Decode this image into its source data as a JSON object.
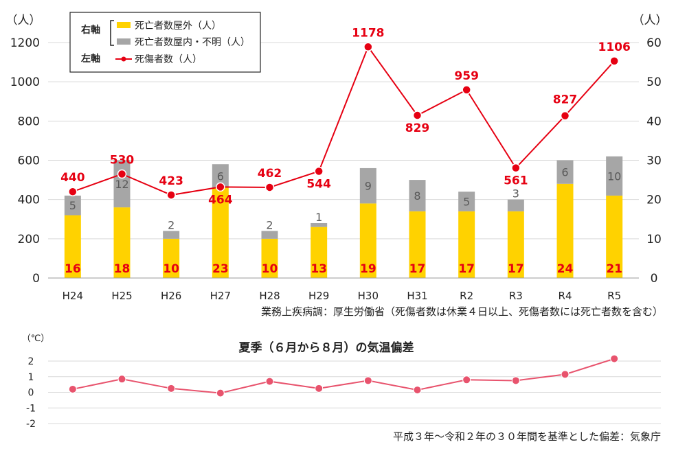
{
  "chart_data": [
    {
      "type": "bar+line",
      "categories": [
        "H24",
        "H25",
        "H26",
        "H27",
        "H28",
        "H29",
        "H30",
        "H31",
        "R2",
        "R3",
        "R4",
        "R5"
      ],
      "left_axis": {
        "unit": "（人）",
        "ticks": [
          "0",
          "200",
          "400",
          "600",
          "800",
          "1000",
          "1200"
        ],
        "ylim": [
          0,
          1200
        ]
      },
      "right_axis": {
        "unit": "（人）",
        "ticks": [
          "0",
          "10",
          "20",
          "30",
          "40",
          "50",
          "60"
        ],
        "ylim": [
          0,
          60
        ]
      },
      "legend": {
        "right_label": "右軸",
        "left_label": "左軸",
        "items": [
          "死亡者数屋外（人）",
          "死亡者数屋内・不明（人）",
          "死傷者数（人）"
        ],
        "placement": "top-left"
      },
      "series": [
        {
          "name": "死亡者数屋外（人）",
          "axis": "right",
          "kind": "stacked-bar",
          "color": "#ffd200",
          "values": [
            16,
            18,
            10,
            23,
            10,
            13,
            19,
            17,
            17,
            17,
            24,
            21
          ]
        },
        {
          "name": "死亡者数屋内・不明（人）",
          "axis": "right",
          "kind": "stacked-bar",
          "color": "#a6a6a6",
          "values": [
            5,
            12,
            2,
            6,
            2,
            1,
            9,
            8,
            5,
            3,
            6,
            10
          ]
        },
        {
          "name": "死傷者数（人）",
          "axis": "left",
          "kind": "line",
          "color": "#e60012",
          "values": [
            440,
            530,
            423,
            464,
            462,
            544,
            1178,
            829,
            959,
            561,
            827,
            1106
          ]
        }
      ],
      "source": "業務上疾病調：厚生労働省（死傷者数は休業４日以上、死傷者数には死亡者数を含む）",
      "grid": true
    },
    {
      "type": "line",
      "title": "夏季（６月から８月）の気温偏差",
      "categories": [
        "H24",
        "H25",
        "H26",
        "H27",
        "H28",
        "H29",
        "H30",
        "H31",
        "R2",
        "R3",
        "R4",
        "R5"
      ],
      "y_axis": {
        "unit": "（℃）",
        "ticks": [
          "2",
          "1",
          "0",
          "-1",
          "-2"
        ],
        "ylim": [
          -2,
          2
        ]
      },
      "series": [
        {
          "color": "#e8536d",
          "values": [
            0.2,
            0.85,
            0.25,
            -0.05,
            0.7,
            0.25,
            0.75,
            0.15,
            0.8,
            0.75,
            1.15,
            2.15
          ]
        }
      ],
      "source": "平成３年～令和２年の３０年間を基準とした偏差：気象庁",
      "grid": true
    }
  ]
}
